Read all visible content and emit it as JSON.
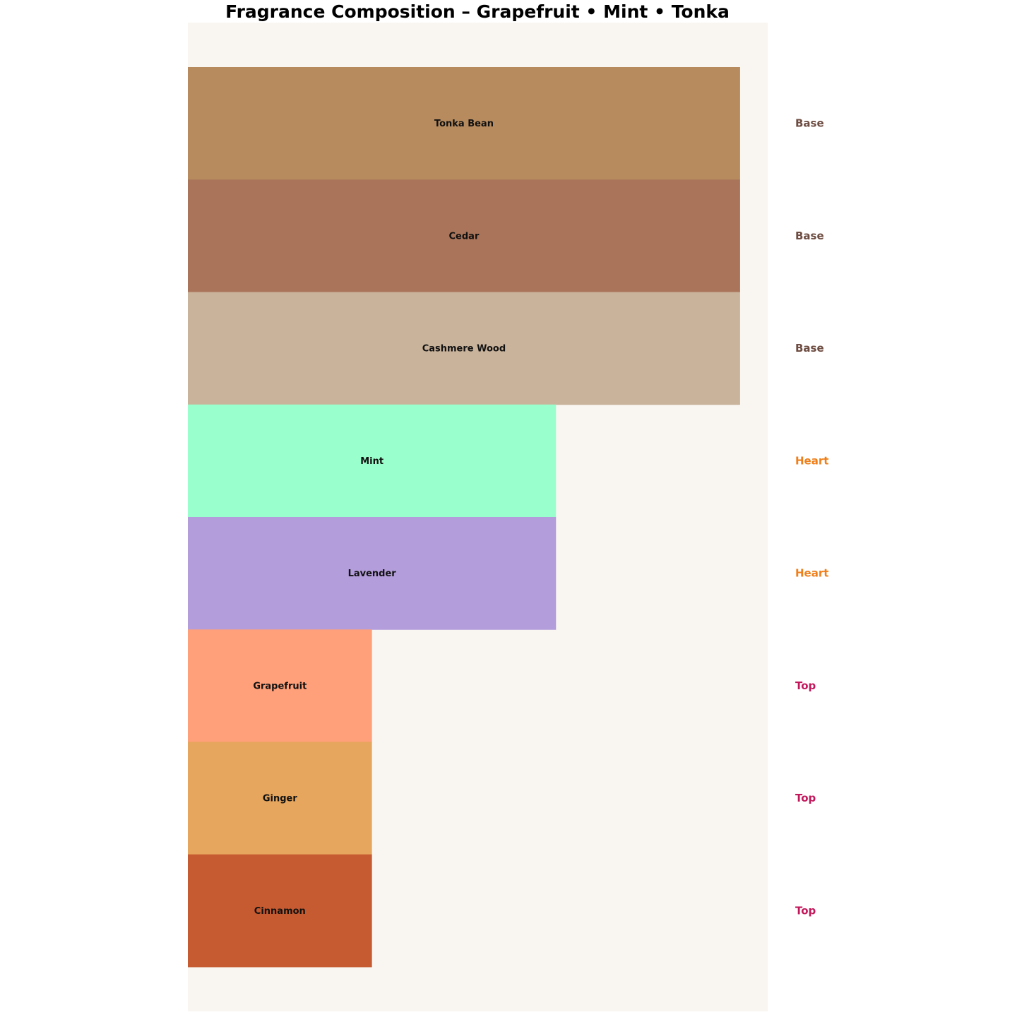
{
  "chart_data": {
    "type": "bar",
    "orientation": "horizontal",
    "title": "Fragrance Composition – Grapefruit • Mint • Tonka",
    "xlabel": "",
    "ylabel": "",
    "xlim": [
      0,
      3.15
    ],
    "grid": false,
    "background": "#f9f6f1",
    "categories": [
      "Tonka Bean",
      "Cedar",
      "Cashmere Wood",
      "Mint",
      "Lavender",
      "Grapefruit",
      "Ginger",
      "Cinnamon"
    ],
    "values": [
      3,
      3,
      3,
      2,
      2,
      1,
      1,
      1
    ],
    "tiers": [
      "Base",
      "Base",
      "Base",
      "Heart",
      "Heart",
      "Top",
      "Top",
      "Top"
    ],
    "colors": [
      "#b78b5e",
      "#a9745a",
      "#c9b39b",
      "#99ffcc",
      "#b39ddb",
      "#ffa07a",
      "#e6a65d",
      "#c65a30"
    ],
    "tier_colors": {
      "Base": "#6d4c41",
      "Heart": "#ef7f1a",
      "Top": "#c2185b"
    }
  }
}
